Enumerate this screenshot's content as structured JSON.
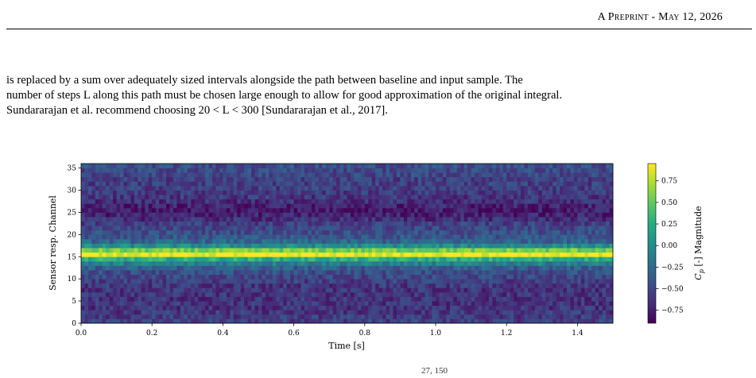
{
  "header": {
    "text": "A Preprint - May 12, 2026"
  },
  "paragraph": {
    "line1": "is replaced by a sum over adequately sized intervals alongside the path between baseline and input sample. The",
    "line2": "number of steps L along this path must be chosen large enough to allow for good approximation of the original integral.",
    "line3": "Sundararajan et al. recommend choosing 20 < L < 300 [Sundararajan et al., 2017]."
  },
  "footer_cut": {
    "text": "27, 150"
  },
  "chart_data": {
    "type": "heatmap",
    "title": "",
    "xlabel": "Time [s]",
    "ylabel": "Sensor resp. Channel",
    "xlim": [
      0.0,
      1.5
    ],
    "ylim": [
      0,
      36
    ],
    "xticks": [
      0.0,
      0.2,
      0.4,
      0.6,
      0.8,
      1.0,
      1.2,
      1.4
    ],
    "yticks": [
      0,
      5,
      10,
      15,
      20,
      25,
      30,
      35
    ],
    "channels": 36,
    "time_bins": 150,
    "colormap": "viridis",
    "colorbar": {
      "label": "Cp [-] Magnitude",
      "range": [
        -0.9,
        0.95
      ],
      "ticks": [
        0.75,
        0.5,
        0.25,
        0.0,
        -0.25,
        -0.5,
        -0.75
      ],
      "tick_labels": [
        "0.75",
        "0.50",
        "0.25",
        "0.00",
        "−0.25",
        "−0.50",
        "−0.75"
      ]
    },
    "channel_mean_profile": [
      -0.55,
      -0.58,
      -0.6,
      -0.62,
      -0.62,
      -0.62,
      -0.62,
      -0.62,
      -0.6,
      -0.55,
      -0.5,
      -0.45,
      -0.35,
      -0.1,
      0.25,
      0.92,
      0.55,
      0.0,
      -0.3,
      -0.4,
      -0.45,
      -0.5,
      -0.55,
      -0.65,
      -0.72,
      -0.75,
      -0.72,
      -0.65,
      -0.6,
      -0.58,
      -0.55,
      -0.55,
      -0.55,
      -0.5,
      -0.48,
      -0.45
    ],
    "noise_amplitude": 0.18
  }
}
